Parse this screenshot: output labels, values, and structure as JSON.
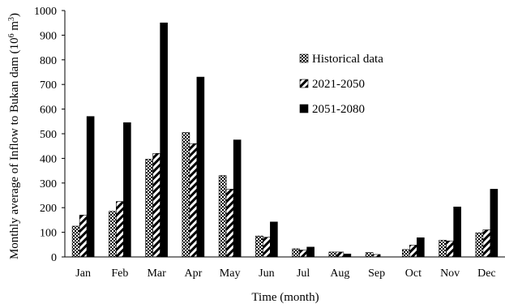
{
  "chart_data": {
    "type": "bar",
    "title": "",
    "xlabel": "Time (month)",
    "ylabel": "Monthly average of Inflow to Bukan dam (10",
    "ylabel_exp": "6",
    "ylabel_unit": " m",
    "ylabel_unit_exp": "3",
    "ylabel_close": ")",
    "ylim": [
      0,
      1000
    ],
    "yticks": [
      "0",
      "100",
      "200",
      "300",
      "400",
      "500",
      "600",
      "700",
      "800",
      "900",
      "1000"
    ],
    "grid": false,
    "legend_position": "top-center",
    "categories": [
      "Jan",
      "Feb",
      "Mar",
      "Apr",
      "May",
      "Jun",
      "Jul",
      "Aug",
      "Sep",
      "Oct",
      "Nov",
      "Dec"
    ],
    "series": [
      {
        "name": "Historical data",
        "pattern": "checker",
        "values": [
          125,
          185,
          397,
          505,
          330,
          85,
          33,
          20,
          18,
          30,
          68,
          98
        ]
      },
      {
        "name": "2021-2050",
        "pattern": "diagonal-stripes",
        "values": [
          170,
          225,
          420,
          460,
          275,
          80,
          28,
          20,
          10,
          48,
          65,
          110
        ]
      },
      {
        "name": "2051-2080",
        "pattern": "solid",
        "values": [
          570,
          545,
          950,
          730,
          475,
          142,
          40,
          12,
          0,
          78,
          203,
          275
        ]
      }
    ],
    "colors": {
      "ink": "#000000",
      "background": "#ffffff"
    }
  }
}
